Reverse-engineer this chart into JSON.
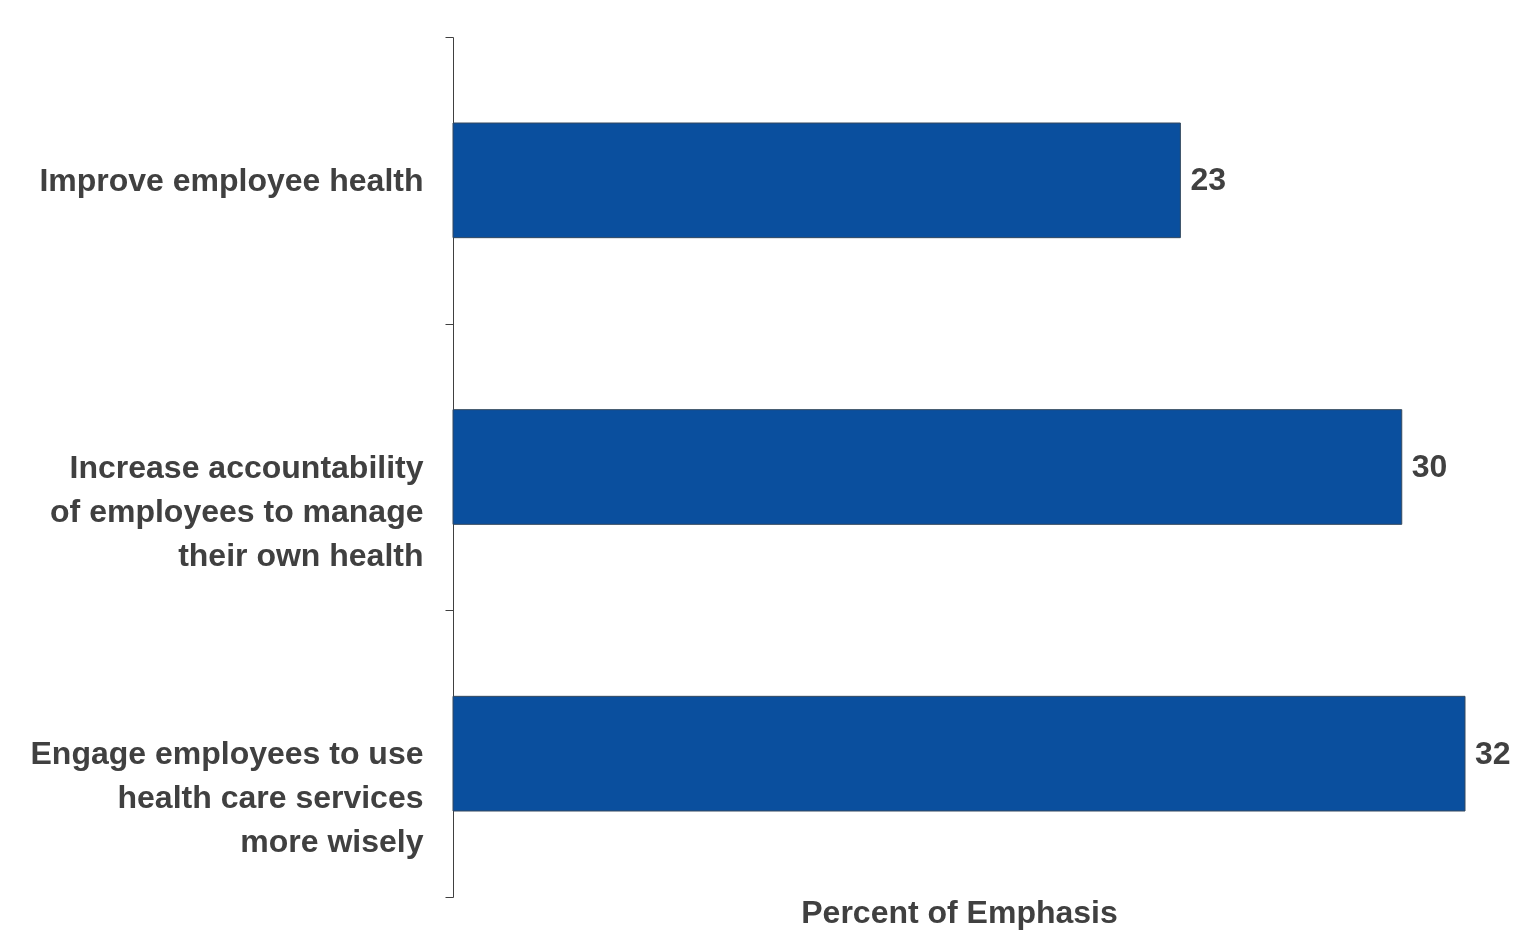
{
  "chart_data": {
    "type": "bar",
    "orientation": "horizontal",
    "categories": [
      "Improve employee health",
      "Increase accountability of employees to manage their own health",
      "Engage employees to use health care services more wisely"
    ],
    "values": [
      23,
      30,
      32
    ],
    "color": "#0a4f9e",
    "data_labels": true,
    "xlabel": "Percent of Emphasis"
  }
}
